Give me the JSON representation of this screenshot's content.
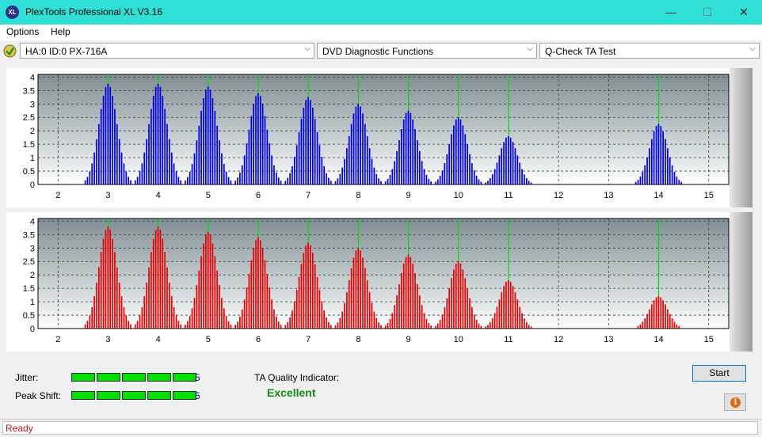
{
  "window": {
    "title": "PlexTools Professional XL V3.16",
    "icon_text": "XL"
  },
  "menu": [
    "Options",
    "Help"
  ],
  "toolbar": {
    "drive": "HA:0 ID:0  PX-716A",
    "function": "DVD Diagnostic Functions",
    "test": "Q-Check TA Test"
  },
  "chart_data": [
    {
      "type": "bar",
      "name": "top",
      "color": "#0000ee",
      "x_ticks": [
        2,
        3,
        4,
        5,
        6,
        7,
        8,
        9,
        10,
        11,
        12,
        13,
        14,
        15
      ],
      "y_ticks": [
        "0",
        "0.5",
        "1",
        "1.5",
        "2",
        "2.5",
        "3",
        "3.5",
        "4"
      ],
      "xlim": [
        1.6,
        15.4
      ],
      "ylim": [
        0,
        4.1
      ],
      "green_markers": [
        3,
        4,
        5,
        6,
        7,
        8,
        9,
        10,
        11,
        14
      ],
      "clusters": [
        {
          "center": 3,
          "peak": 3.75
        },
        {
          "center": 4,
          "peak": 3.75
        },
        {
          "center": 5,
          "peak": 3.65
        },
        {
          "center": 6,
          "peak": 3.4
        },
        {
          "center": 7,
          "peak": 3.25
        },
        {
          "center": 8,
          "peak": 3.0
        },
        {
          "center": 9,
          "peak": 2.75
        },
        {
          "center": 10,
          "peak": 2.5
        },
        {
          "center": 11,
          "peak": 1.8
        },
        {
          "center": 14,
          "peak": 2.25
        }
      ]
    },
    {
      "type": "bar",
      "name": "bottom",
      "color": "#ee0000",
      "x_ticks": [
        2,
        3,
        4,
        5,
        6,
        7,
        8,
        9,
        10,
        11,
        12,
        13,
        14,
        15
      ],
      "y_ticks": [
        "0",
        "0.5",
        "1",
        "1.5",
        "2",
        "2.5",
        "3",
        "3.5",
        "4"
      ],
      "xlim": [
        1.6,
        15.4
      ],
      "ylim": [
        0,
        4.1
      ],
      "green_markers": [
        3,
        4,
        5,
        6,
        7,
        8,
        9,
        10,
        11,
        14
      ],
      "clusters": [
        {
          "center": 3,
          "peak": 3.8
        },
        {
          "center": 4,
          "peak": 3.8
        },
        {
          "center": 5,
          "peak": 3.6
        },
        {
          "center": 6,
          "peak": 3.4
        },
        {
          "center": 7,
          "peak": 3.2
        },
        {
          "center": 8,
          "peak": 3.0
        },
        {
          "center": 9,
          "peak": 2.75
        },
        {
          "center": 10,
          "peak": 2.5
        },
        {
          "center": 11,
          "peak": 1.8
        },
        {
          "center": 14,
          "peak": 1.2
        }
      ]
    }
  ],
  "results": {
    "jitter_label": "Jitter:",
    "jitter_value": "5",
    "jitter_segments": 5,
    "peak_label": "Peak Shift:",
    "peak_value": "5",
    "peak_segments": 5,
    "ta_label": "TA Quality Indicator:",
    "ta_value": "Excellent"
  },
  "buttons": {
    "start": "Start"
  },
  "status": {
    "text": "Ready"
  }
}
